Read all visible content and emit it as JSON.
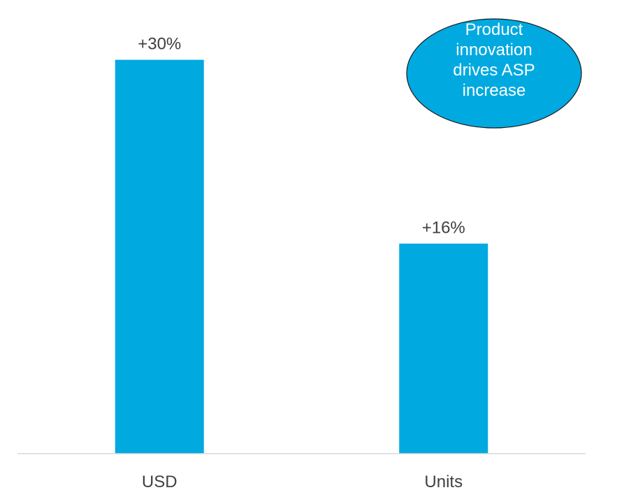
{
  "chart_data": {
    "type": "bar",
    "categories": [
      "USD",
      "Units"
    ],
    "values": [
      30,
      16
    ],
    "value_labels": [
      "+30%",
      "+16%"
    ],
    "ylim": [
      0,
      32
    ],
    "grid": false,
    "legend": "none",
    "bar_color": "#00a9e0",
    "annotation": {
      "text": "Product innovation drives ASP increase",
      "fill_color": "#00a9e0",
      "text_color": "#ffffff"
    }
  }
}
